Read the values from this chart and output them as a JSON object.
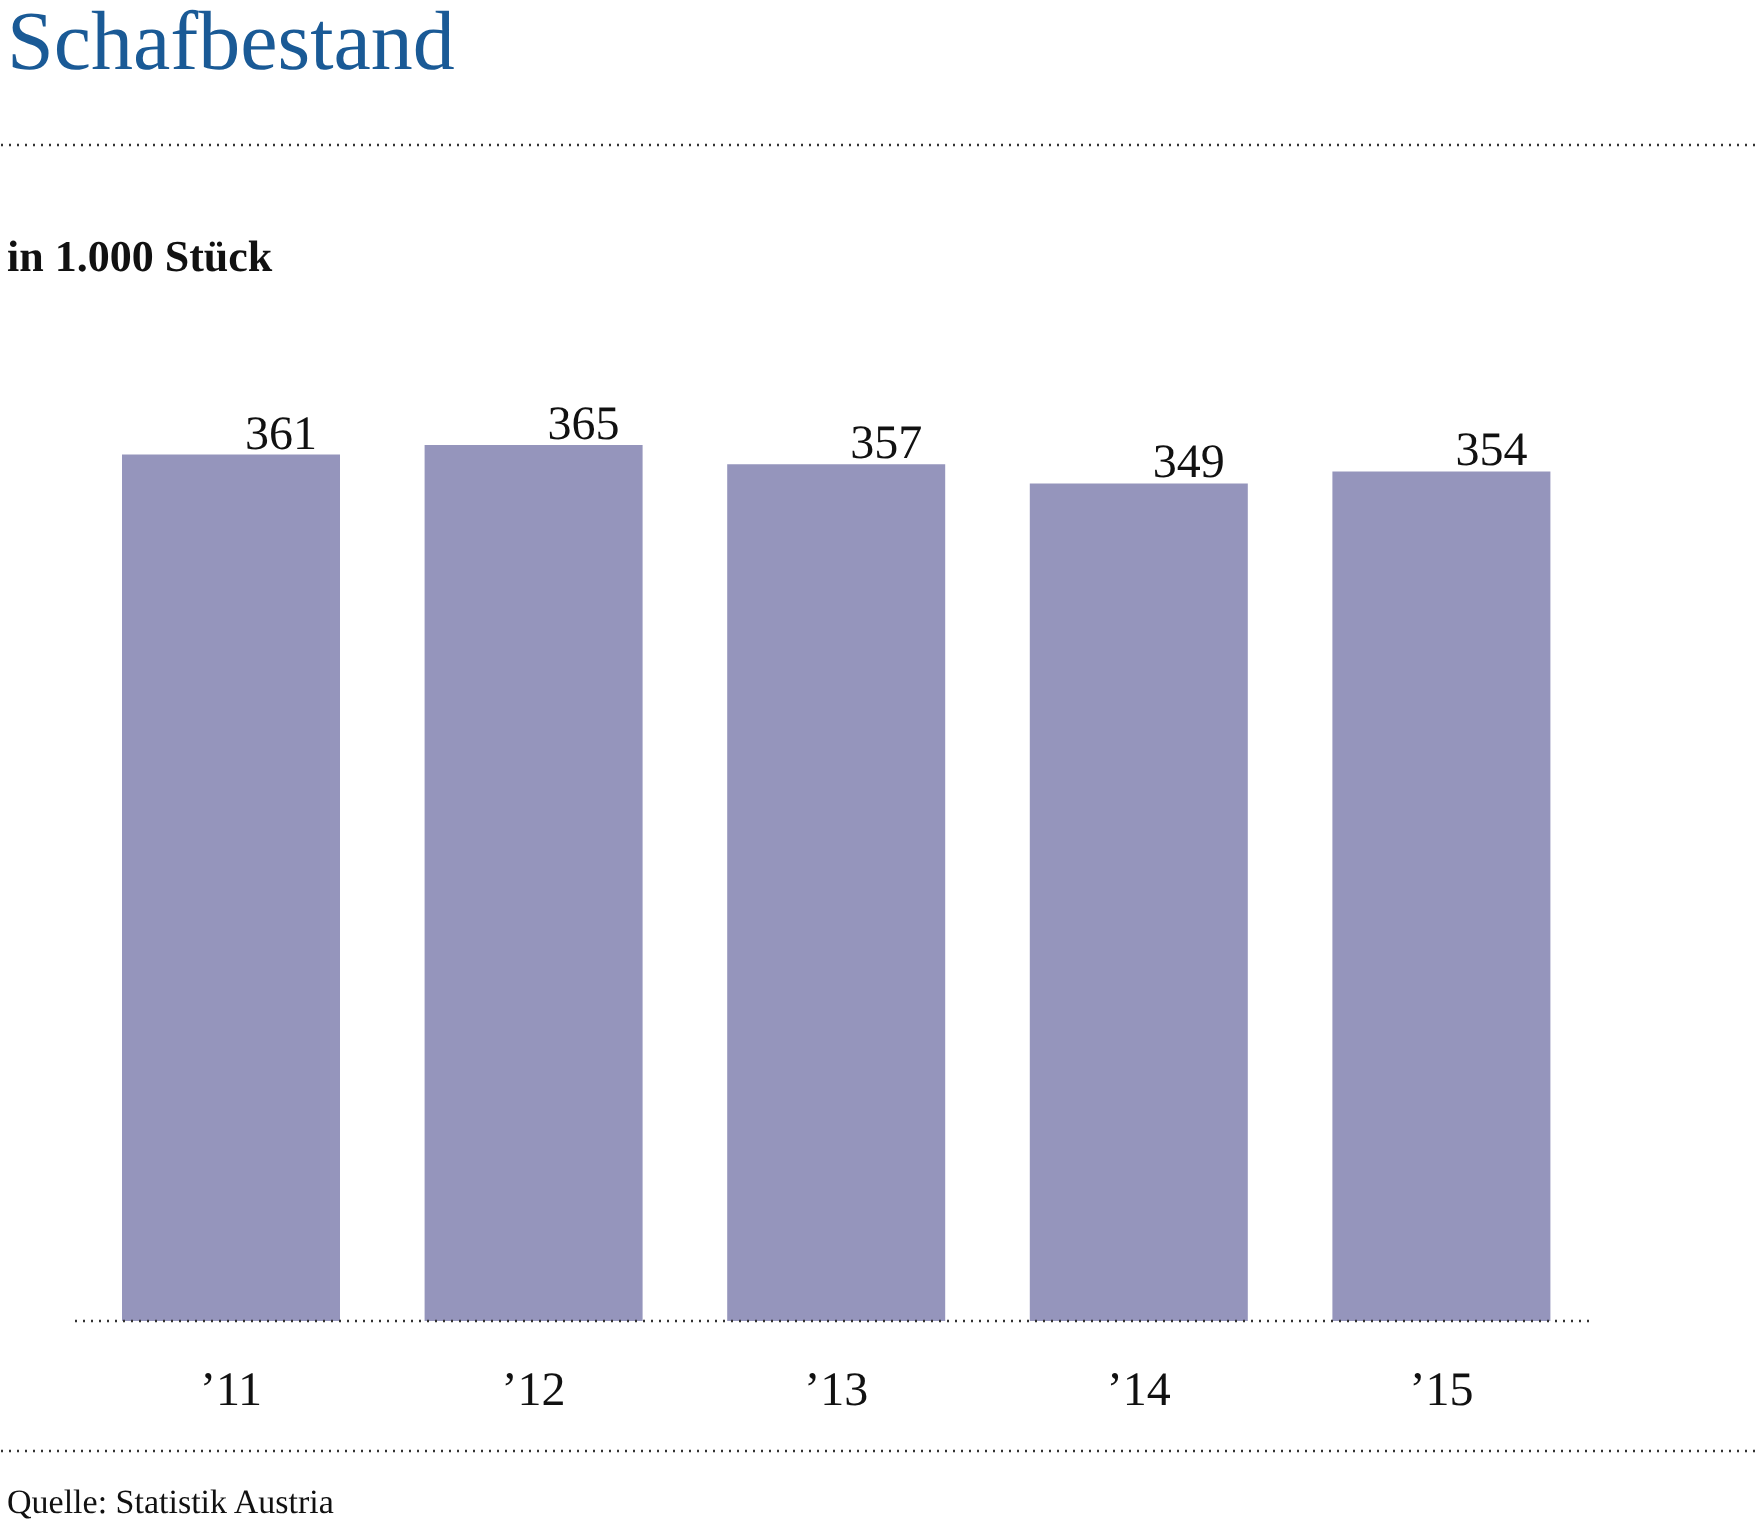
{
  "chart_data": {
    "type": "bar",
    "title": "Schafbestand",
    "subtitle": "in 1.000 Stück",
    "categories": [
      "’11",
      "’12",
      "’13",
      "’14",
      "’15"
    ],
    "values": [
      361,
      365,
      357,
      349,
      354
    ],
    "color": "#9595bc",
    "data_labels": true,
    "annotations": [
      "Quelle: Statistik Austria"
    ]
  }
}
